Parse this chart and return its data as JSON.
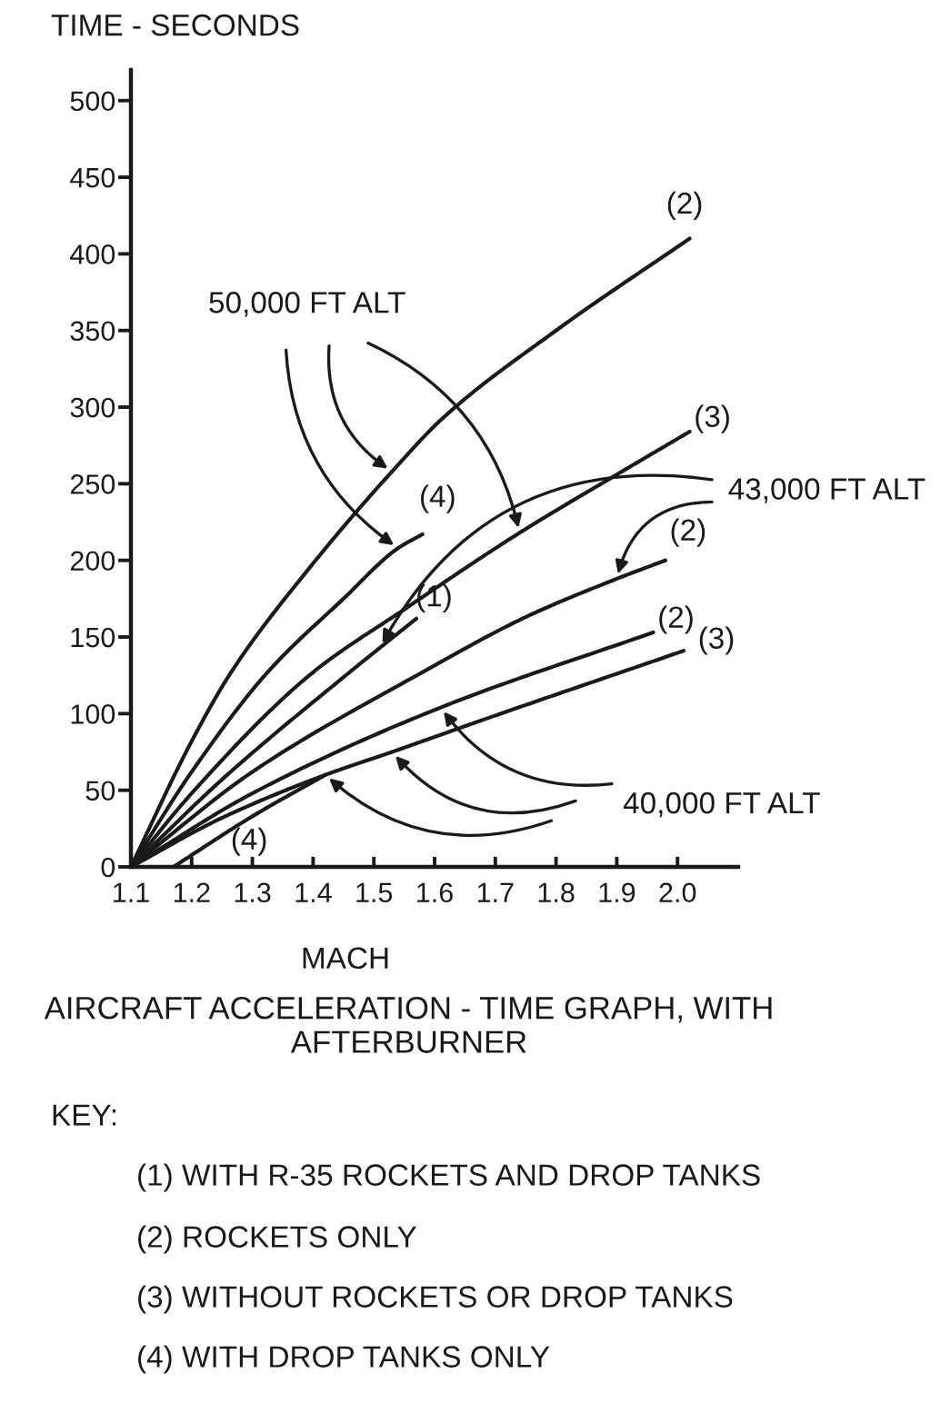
{
  "chart_data": {
    "type": "line",
    "title": "AIRCRAFT ACCELERATION - TIME GRAPH, WITH AFTERBURNER",
    "xlabel": "MACH",
    "ylabel": "TIME - SECONDS",
    "xlim": [
      1.1,
      2.1
    ],
    "xticks": [
      1.1,
      1.2,
      1.3,
      1.4,
      1.5,
      1.6,
      1.7,
      1.8,
      1.9,
      {
        "value": 2.0,
        "label": "2.0"
      }
    ],
    "ylim": [
      0,
      520
    ],
    "yticks": [
      0,
      50,
      100,
      150,
      200,
      250,
      300,
      350,
      400,
      450,
      500
    ],
    "grid": false,
    "marker": "none",
    "line_style": "solid",
    "series": [
      {
        "name": "(2)",
        "color": "#1a1a1a",
        "x": [
          1.1,
          1.2,
          1.265,
          1.4,
          1.53,
          1.614,
          1.8,
          2.02
        ],
        "values": [
          0,
          82,
          127,
          198,
          258,
          293,
          350,
          410
        ]
      },
      {
        "name": "(4)",
        "color": "#1a1a1a",
        "x": [
          1.1,
          1.2,
          1.325,
          1.45,
          1.54,
          1.58
        ],
        "values": [
          0,
          62,
          127,
          175,
          208,
          217
        ]
      },
      {
        "name": "(3)",
        "color": "#1a1a1a",
        "x": [
          1.1,
          1.2,
          1.4,
          1.55,
          1.74,
          1.9,
          2.02
        ],
        "values": [
          0,
          48,
          127,
          168,
          218,
          256,
          284
        ]
      },
      {
        "name": "(1)",
        "color": "#1a1a1a",
        "x": [
          1.1,
          1.25,
          1.46,
          1.51,
          1.57
        ],
        "values": [
          0,
          57,
          127,
          143,
          162
        ]
      },
      {
        "name": "(2)",
        "color": "#1a1a1a",
        "x": [
          1.1,
          1.3,
          1.58,
          1.75,
          1.9,
          1.98
        ],
        "values": [
          0,
          62,
          127,
          163,
          188,
          200
        ]
      },
      {
        "name": "(2)",
        "color": "#1a1a1a",
        "x": [
          1.1,
          1.3,
          1.61,
          1.96
        ],
        "values": [
          0,
          48,
          104,
          153
        ]
      },
      {
        "name": "(3)",
        "color": "#1a1a1a",
        "x": [
          1.1,
          1.25,
          1.42,
          1.53,
          1.68,
          2.01
        ],
        "values": [
          0,
          32,
          60,
          75,
          96,
          141
        ]
      },
      {
        "name": "(4)",
        "color": "#1a1a1a",
        "x": [
          1.17,
          1.3,
          1.42
        ],
        "values": [
          0,
          33,
          60
        ]
      }
    ],
    "annotations": [
      {
        "text": "50,000 FT ALT",
        "x": 1.53,
        "y": 258
      },
      {
        "text": "43,000 FT ALT",
        "x": 1.51,
        "y": 143
      },
      {
        "text": "40,000 FT ALT",
        "x": 1.61,
        "y": 104
      },
      "KEY:",
      "(1) WITH R-35 ROCKETS AND DROP TANKS",
      "(2) ROCKETS ONLY",
      "(3) WITHOUT ROCKETS OR DROP TANKS",
      "(4) WITH DROP TANKS ONLY"
    ]
  }
}
